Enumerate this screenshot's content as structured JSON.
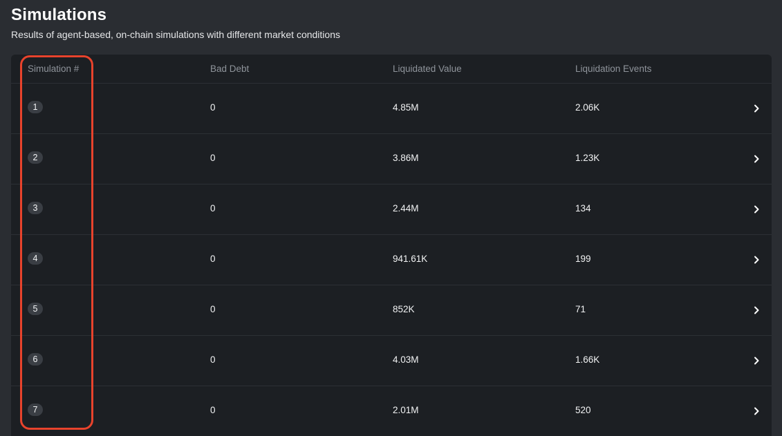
{
  "header": {
    "title": "Simulations",
    "subtitle": "Results of agent-based, on-chain simulations with different market conditions"
  },
  "table": {
    "columns": [
      "Simulation #",
      "Bad Debt",
      "Liquidated Value",
      "Liquidation Events"
    ],
    "rows": [
      {
        "id": "1",
        "bad_debt": "0",
        "liquidated_value": "4.85M",
        "liquidation_events": "2.06K"
      },
      {
        "id": "2",
        "bad_debt": "0",
        "liquidated_value": "3.86M",
        "liquidation_events": "1.23K"
      },
      {
        "id": "3",
        "bad_debt": "0",
        "liquidated_value": "2.44M",
        "liquidation_events": "134"
      },
      {
        "id": "4",
        "bad_debt": "0",
        "liquidated_value": "941.61K",
        "liquidation_events": "199"
      },
      {
        "id": "5",
        "bad_debt": "0",
        "liquidated_value": "852K",
        "liquidation_events": "71"
      },
      {
        "id": "6",
        "bad_debt": "0",
        "liquidated_value": "4.03M",
        "liquidation_events": "1.66K"
      },
      {
        "id": "7",
        "bad_debt": "0",
        "liquidated_value": "2.01M",
        "liquidation_events": "520"
      }
    ],
    "row_icon": "chevron-right-icon"
  },
  "annotation": {
    "highlight_color": "#e8432c",
    "highlighted_column": "Simulation #"
  }
}
